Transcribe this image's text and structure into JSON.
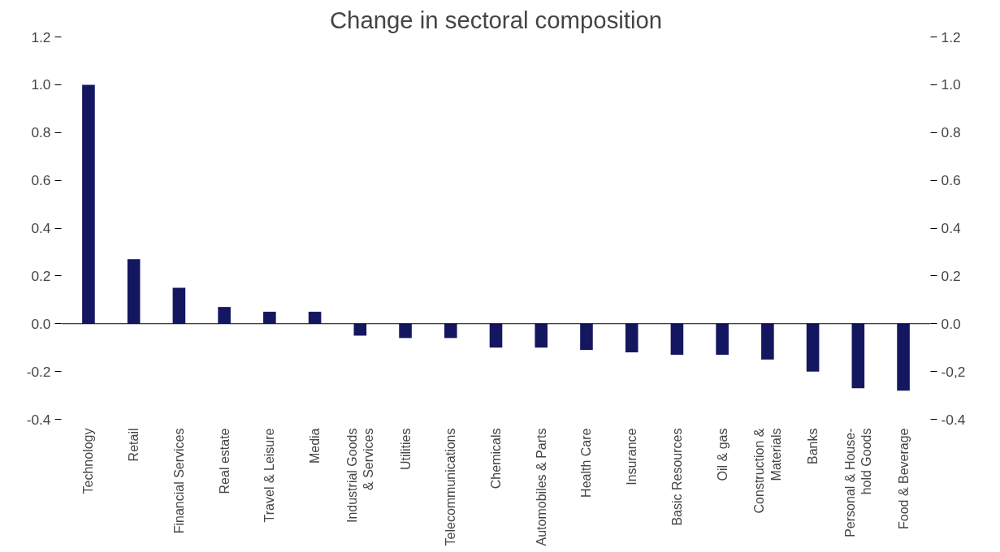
{
  "chart_data": {
    "type": "bar",
    "title": "Change in sectoral composition",
    "categories": [
      "Technology",
      "Retail",
      "Financial Services",
      "Real estate",
      "Travel & Leisure",
      "Media",
      "Industrial Goods\n& Services",
      "Utilities",
      "Telecommunications",
      "Chemicals",
      "Automobiles & Parts",
      "Health Care",
      "Insurance",
      "Basic Resources",
      "Oil & gas",
      "Construction &\nMaterials",
      "Banks",
      "Personal & House-\nhold Goods",
      "Food & Beverage"
    ],
    "values": [
      1.0,
      0.27,
      0.15,
      0.07,
      0.05,
      0.05,
      -0.05,
      -0.06,
      -0.06,
      -0.1,
      -0.1,
      -0.11,
      -0.12,
      -0.13,
      -0.13,
      -0.15,
      -0.2,
      -0.27,
      -0.28
    ],
    "color": "#141760",
    "ylim": [
      -0.4,
      1.2
    ],
    "yticks": [
      {
        "value": -0.4,
        "label": "-0.4"
      },
      {
        "value": -0.2,
        "label": "-0.2"
      },
      {
        "value": 0,
        "label": "0.0"
      },
      {
        "value": 0.2,
        "label": "0.2"
      },
      {
        "value": 0.4,
        "label": "0.4"
      },
      {
        "value": 0.6,
        "label": "0.6"
      },
      {
        "value": 0.8,
        "label": "0.8"
      },
      {
        "value": 1,
        "label": "1.0"
      },
      {
        "value": 1.2,
        "label": "1.2"
      }
    ],
    "y2lim": [
      -0.4,
      1.2
    ],
    "y2ticks": [
      {
        "value": -0.4,
        "label": "-0.4"
      },
      {
        "value": -0.2,
        "label": "-0,2"
      },
      {
        "value": 0,
        "label": "0.0"
      },
      {
        "value": 0.2,
        "label": "0.2"
      },
      {
        "value": 0.4,
        "label": "0.4"
      },
      {
        "value": 0.6,
        "label": "0.6"
      },
      {
        "value": 0.8,
        "label": "0.8"
      },
      {
        "value": 1,
        "label": "1.0"
      },
      {
        "value": 1.2,
        "label": "1.2"
      }
    ]
  }
}
